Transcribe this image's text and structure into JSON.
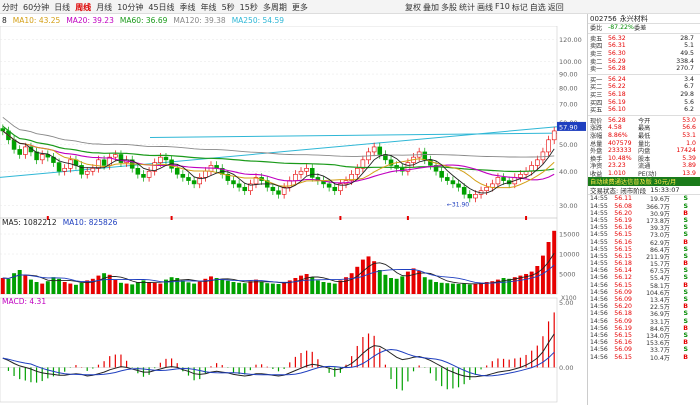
{
  "toolbar": {
    "periods": [
      "分时",
      "60分钟",
      "日线",
      "周线",
      "月线",
      "10分钟",
      "45日线",
      "季线",
      "年线",
      "5秒",
      "15秒",
      "多周期",
      "更多"
    ],
    "active_period": "周线",
    "tools": [
      "复权",
      "叠加",
      "多股",
      "统计",
      "画线",
      "F10",
      "标记",
      "自选",
      "返回"
    ]
  },
  "ma_legend": [
    {
      "label": "8",
      "color": "#222222"
    },
    {
      "label": "MA10: 43.25",
      "color": "#d4a017"
    },
    {
      "label": "MA20: 39.23",
      "color": "#c000c0"
    },
    {
      "label": "MA60: 36.69",
      "color": "#1a9a1a"
    },
    {
      "label": "MA120: 39.38",
      "color": "#888888"
    },
    {
      "label": "MA250: 54.59",
      "color": "#2fb7d6"
    }
  ],
  "vol_legend": [
    {
      "label": "MA5: 1082212",
      "color": "#222222"
    },
    {
      "label": "MA10: 825826",
      "color": "#1f3fbf"
    }
  ],
  "macd_legend": [
    {
      "label": "MACD: 4.31",
      "color": "#c000c0"
    }
  ],
  "axis": {
    "price_ticks": [
      "120.00",
      "100.00",
      "90.00",
      "80.00",
      "70.00",
      "60.00",
      "50.00",
      "40.00",
      "30.00"
    ],
    "price_marker": "57.90",
    "low_marker": "31.90",
    "vol_ticks": [
      "15000",
      "10000",
      "5000"
    ],
    "vol_unit": "X100",
    "macd_ticks": [
      "5.00",
      "0.00"
    ]
  },
  "stock": {
    "code": "002756",
    "name": "永兴材料"
  },
  "order_book": {
    "top": [
      {
        "label": "委比",
        "value": "-87.22%",
        "label2": "委差",
        "value2": ""
      }
    ],
    "asks": [
      {
        "label": "卖五",
        "price": "56.32",
        "vol": "28.7"
      },
      {
        "label": "卖四",
        "price": "56.31",
        "vol": "5.1"
      },
      {
        "label": "卖三",
        "price": "56.30",
        "vol": "49.5"
      },
      {
        "label": "卖二",
        "price": "56.29",
        "vol": "338.4"
      },
      {
        "label": "卖一",
        "price": "56.28",
        "vol": "270.7"
      }
    ],
    "bids": [
      {
        "label": "买一",
        "price": "56.24",
        "vol": "3.4"
      },
      {
        "label": "买二",
        "price": "56.22",
        "vol": "6.7"
      },
      {
        "label": "买三",
        "price": "56.18",
        "vol": "29.8"
      },
      {
        "label": "买四",
        "price": "56.19",
        "vol": "5.6"
      },
      {
        "label": "买五",
        "price": "56.10",
        "vol": "6.2"
      }
    ]
  },
  "quote": [
    {
      "l": "现价",
      "v": "56.28",
      "l2": "今开",
      "v2": "53.0"
    },
    {
      "l": "涨跌",
      "v": "4.58",
      "l2": "最高",
      "v2": "56.6"
    },
    {
      "l": "涨幅",
      "v": "8.86%",
      "l2": "最低",
      "v2": "53.1"
    },
    {
      "l": "总量",
      "v": "407579",
      "l2": "量比",
      "v2": "1.0"
    },
    {
      "l": "外盘",
      "v": "233333",
      "l2": "内盘",
      "v2": "17424"
    },
    {
      "l": "换手",
      "v": "10.48%",
      "l2": "股本",
      "v2": "5.39"
    },
    {
      "l": "净资",
      "v": "23.23",
      "l2": "流通",
      "v2": "3.89"
    },
    {
      "l": "收益",
      "v": "1.010",
      "l2": "PE(动)",
      "v2": "13.9"
    }
  ],
  "notice": "自动续费通达信普及版  30元/月",
  "status": {
    "label": "交易状态: 闭市阶段",
    "time": "15:33:07"
  },
  "ticks": [
    {
      "t": "14:55",
      "p": "56.11",
      "v": "19.6万",
      "f": "S"
    },
    {
      "t": "14:55",
      "p": "56.08",
      "v": "366.7万",
      "f": "S"
    },
    {
      "t": "14:55",
      "p": "56.20",
      "v": "30.9万",
      "f": "B"
    },
    {
      "t": "14:55",
      "p": "56.19",
      "v": "173.8万",
      "f": "S"
    },
    {
      "t": "14:55",
      "p": "56.16",
      "v": "39.3万",
      "f": "S"
    },
    {
      "t": "14:55",
      "p": "56.15",
      "v": "73.0万",
      "f": "S"
    },
    {
      "t": "14:55",
      "p": "56.16",
      "v": "62.9万",
      "f": "B"
    },
    {
      "t": "14:55",
      "p": "56.15",
      "v": "86.4万",
      "f": "S"
    },
    {
      "t": "14:55",
      "p": "56.15",
      "v": "211.9万",
      "f": "S"
    },
    {
      "t": "14:55",
      "p": "56.18",
      "v": "15.7万",
      "f": "B"
    },
    {
      "t": "14:56",
      "p": "56.14",
      "v": "67.5万",
      "f": "S"
    },
    {
      "t": "14:56",
      "p": "56.12",
      "v": "55.4万",
      "f": "S"
    },
    {
      "t": "14:56",
      "p": "56.15",
      "v": "58.1万",
      "f": "B"
    },
    {
      "t": "14:56",
      "p": "56.09",
      "v": "104.6万",
      "f": "S"
    },
    {
      "t": "14:56",
      "p": "56.09",
      "v": "13.4万",
      "f": "S"
    },
    {
      "t": "14:56",
      "p": "56.20",
      "v": "22.5万",
      "f": "B"
    },
    {
      "t": "14:56",
      "p": "56.18",
      "v": "36.9万",
      "f": "S"
    },
    {
      "t": "14:56",
      "p": "56.09",
      "v": "33.1万",
      "f": "S"
    },
    {
      "t": "14:56",
      "p": "56.19",
      "v": "84.6万",
      "f": "B"
    },
    {
      "t": "14:56",
      "p": "56.15",
      "v": "134.0万",
      "f": "S"
    },
    {
      "t": "14:56",
      "p": "56.16",
      "v": "153.6万",
      "f": "B"
    },
    {
      "t": "14:56",
      "p": "56.09",
      "v": "33.7万",
      "f": "S"
    },
    {
      "t": "14:56",
      "p": "56.15",
      "v": "10.4万",
      "f": "B"
    }
  ],
  "chart_data": {
    "type": "candlestick",
    "price_range": [
      28,
      130
    ],
    "close": [
      56,
      52,
      48,
      46,
      49,
      47,
      44,
      46,
      45,
      43,
      40,
      41,
      44,
      42,
      39,
      40,
      41,
      44,
      42,
      45,
      46,
      43,
      44,
      41,
      39,
      38,
      40,
      43,
      45,
      44,
      41,
      39,
      38,
      37,
      36,
      38,
      40,
      42,
      41,
      39,
      37,
      36,
      35,
      34,
      36,
      38,
      37,
      35,
      34,
      33,
      35,
      37,
      39,
      40,
      41,
      38,
      37,
      36,
      35,
      34,
      36,
      37,
      39,
      41,
      44,
      47,
      49,
      46,
      44,
      42,
      41,
      40,
      43,
      45,
      47,
      44,
      42,
      40,
      38,
      37,
      36,
      35,
      33,
      32,
      33,
      34,
      35,
      36,
      38,
      37,
      36,
      38,
      39,
      40,
      42,
      44,
      47,
      52,
      56
    ],
    "volume": [
      4000,
      3800,
      5200,
      6000,
      4800,
      3600,
      3000,
      2600,
      3200,
      4200,
      3800,
      3000,
      2600,
      2300,
      2800,
      3400,
      3800,
      4600,
      5200,
      4800,
      3600,
      2800,
      2600,
      2400,
      3000,
      3400,
      3000,
      2800,
      2600,
      3600,
      4200,
      4000,
      3400,
      2900,
      2600,
      3100,
      3800,
      4400,
      4000,
      3500,
      3300,
      3000,
      2800,
      2700,
      3200,
      3600,
      3100,
      2700,
      2600,
      2500,
      3000,
      3400,
      4000,
      4600,
      5000,
      4200,
      3400,
      3000,
      2800,
      2600,
      3400,
      4200,
      5200,
      6800,
      8600,
      9400,
      8200,
      6000,
      4800,
      4000,
      3800,
      4400,
      5600,
      6400,
      5800,
      4200,
      3600,
      3000,
      2800,
      2700,
      2600,
      2500,
      2600,
      2400,
      2600,
      2800,
      3000,
      3200,
      3600,
      4000,
      3800,
      4200,
      4600,
      5000,
      5600,
      7000,
      9600,
      13000,
      15800
    ],
    "macd": [
      1.2,
      0.9,
      0.5,
      0.2,
      0.0,
      -0.2,
      -0.5,
      -0.7,
      -0.8,
      -0.9,
      -1.0,
      -1.0,
      -0.9,
      -0.8,
      -0.9,
      -1.1,
      -1.0,
      -0.8,
      -0.6,
      -0.3,
      -0.1,
      0.1,
      0.0,
      -0.2,
      -0.4,
      -0.6,
      -0.6,
      -0.4,
      -0.2,
      0.0,
      0.1,
      0.0,
      -0.3,
      -0.5,
      -0.8,
      -0.9,
      -0.8,
      -0.6,
      -0.5,
      -0.6,
      -0.7,
      -0.9,
      -1.0,
      -1.1,
      -1.0,
      -0.8,
      -0.8,
      -0.9,
      -1.0,
      -1.1,
      -1.0,
      -0.7,
      -0.4,
      -0.1,
      0.2,
      0.4,
      0.3,
      0.1,
      -0.1,
      -0.3,
      -0.2,
      0.1,
      0.5,
      1.1,
      1.8,
      2.4,
      2.8,
      2.7,
      2.3,
      1.8,
      1.3,
      1.0,
      1.1,
      1.3,
      1.4,
      1.2,
      0.9,
      0.5,
      0.1,
      -0.3,
      -0.6,
      -0.9,
      -1.1,
      -1.2,
      -1.2,
      -1.1,
      -1.0,
      -0.8,
      -0.6,
      -0.5,
      -0.4,
      -0.2,
      0.0,
      0.3,
      0.7,
      1.2,
      2.0,
      3.2,
      4.3
    ]
  }
}
